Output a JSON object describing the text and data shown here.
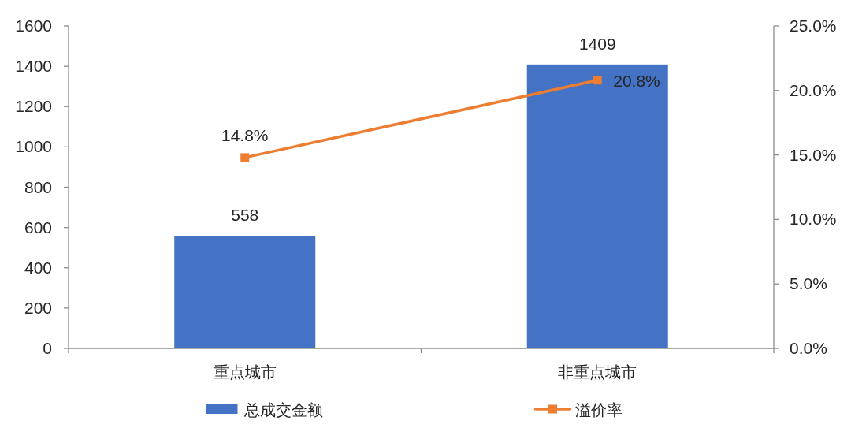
{
  "chart_data": {
    "type": "bar",
    "categories": [
      "重点城市",
      "非重点城市"
    ],
    "series": [
      {
        "name": "总成交金额",
        "color": "#4472c4",
        "values": [
          558,
          1409
        ],
        "value_labels": [
          "558",
          "1409"
        ]
      },
      {
        "name": "溢价率",
        "type": "line",
        "axis": "y2",
        "color": "#ed7d31",
        "values": [
          14.8,
          20.8
        ],
        "value_labels": [
          "14.8%",
          "20.8%"
        ]
      }
    ],
    "ylim": [
      0,
      1600
    ],
    "yticks": [
      0,
      200,
      400,
      600,
      800,
      1000,
      1200,
      1400,
      1600
    ],
    "y2lim": [
      0,
      25
    ],
    "y2ticks": [
      {
        "value": 0,
        "label": "0.0%"
      },
      {
        "value": 5,
        "label": "5.0%"
      },
      {
        "value": 10,
        "label": "10.0%"
      },
      {
        "value": 15,
        "label": "15.0%"
      },
      {
        "value": 20,
        "label": "20.0%"
      },
      {
        "value": 25,
        "label": "25.0%"
      }
    ],
    "legend": "bottom",
    "marker": "square",
    "line_style": "solid"
  }
}
